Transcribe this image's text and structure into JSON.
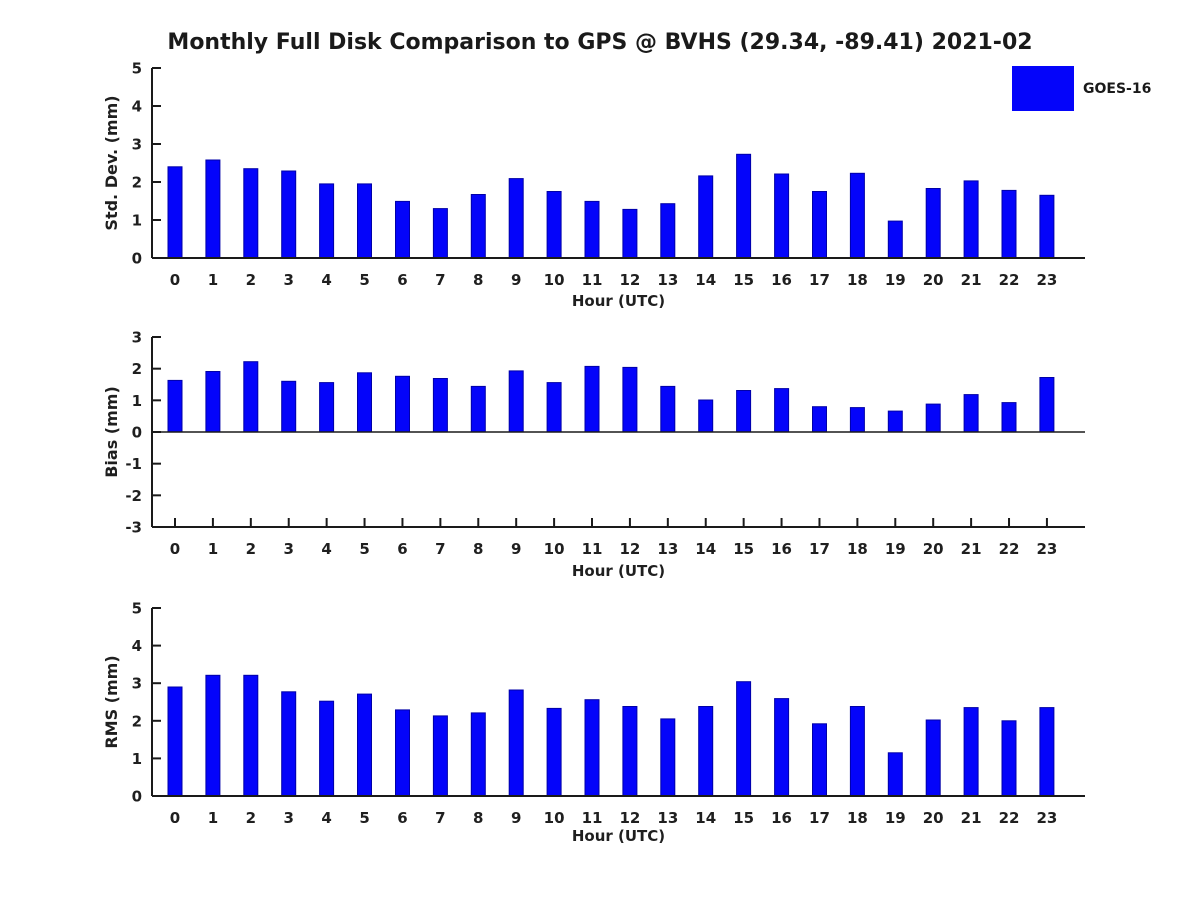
{
  "title": "Monthly Full Disk Comparison to GPS @ BVHS (29.34, -89.41) 2021-02",
  "legend": {
    "label": "GOES-16",
    "position": "top-right"
  },
  "colors": {
    "bar_fill": "#0404fa",
    "bar_edge": "#0000a8",
    "text": "#1f1f1f",
    "axis": "#1a1a1a"
  },
  "chart_data": [
    {
      "type": "bar",
      "series_name": "GOES-16",
      "ylabel": "Std. Dev. (mm)",
      "xlabel": "Hour (UTC)",
      "categories": [
        "0",
        "1",
        "2",
        "3",
        "4",
        "5",
        "6",
        "7",
        "8",
        "9",
        "10",
        "11",
        "12",
        "13",
        "14",
        "15",
        "16",
        "17",
        "18",
        "19",
        "20",
        "21",
        "22",
        "23"
      ],
      "values": [
        2.4,
        2.58,
        2.35,
        2.29,
        1.95,
        1.95,
        1.49,
        1.3,
        1.67,
        2.09,
        1.75,
        1.49,
        1.28,
        1.43,
        2.16,
        2.73,
        2.21,
        1.75,
        2.23,
        0.97,
        1.83,
        2.03,
        1.78,
        1.65
      ],
      "ylim": [
        0,
        5
      ],
      "yticks": [
        0,
        1,
        2,
        3,
        4,
        5
      ],
      "grid": false
    },
    {
      "type": "bar",
      "series_name": "GOES-16",
      "ylabel": "Bias (mm)",
      "xlabel": "Hour (UTC)",
      "categories": [
        "0",
        "1",
        "2",
        "3",
        "4",
        "5",
        "6",
        "7",
        "8",
        "9",
        "10",
        "11",
        "12",
        "13",
        "14",
        "15",
        "16",
        "17",
        "18",
        "19",
        "20",
        "21",
        "22",
        "23"
      ],
      "values": [
        1.63,
        1.91,
        2.22,
        1.6,
        1.56,
        1.87,
        1.76,
        1.69,
        1.44,
        1.93,
        1.56,
        2.07,
        2.04,
        1.44,
        1.01,
        1.31,
        1.37,
        0.8,
        0.77,
        0.66,
        0.88,
        1.18,
        0.93,
        1.72
      ],
      "ylim": [
        -3,
        3
      ],
      "yticks": [
        -3,
        -2,
        -1,
        0,
        1,
        2,
        3
      ],
      "grid": false
    },
    {
      "type": "bar",
      "series_name": "GOES-16",
      "ylabel": "RMS (mm)",
      "xlabel": "Hour (UTC)",
      "categories": [
        "0",
        "1",
        "2",
        "3",
        "4",
        "5",
        "6",
        "7",
        "8",
        "9",
        "10",
        "11",
        "12",
        "13",
        "14",
        "15",
        "16",
        "17",
        "18",
        "19",
        "20",
        "21",
        "22",
        "23"
      ],
      "values": [
        2.9,
        3.21,
        3.21,
        2.77,
        2.52,
        2.71,
        2.29,
        2.13,
        2.21,
        2.82,
        2.33,
        2.56,
        2.38,
        2.05,
        2.38,
        3.04,
        2.59,
        1.92,
        2.38,
        1.15,
        2.02,
        2.35,
        2.0,
        2.35
      ],
      "ylim": [
        0,
        5
      ],
      "yticks": [
        0,
        1,
        2,
        3,
        4,
        5
      ],
      "grid": false
    }
  ]
}
